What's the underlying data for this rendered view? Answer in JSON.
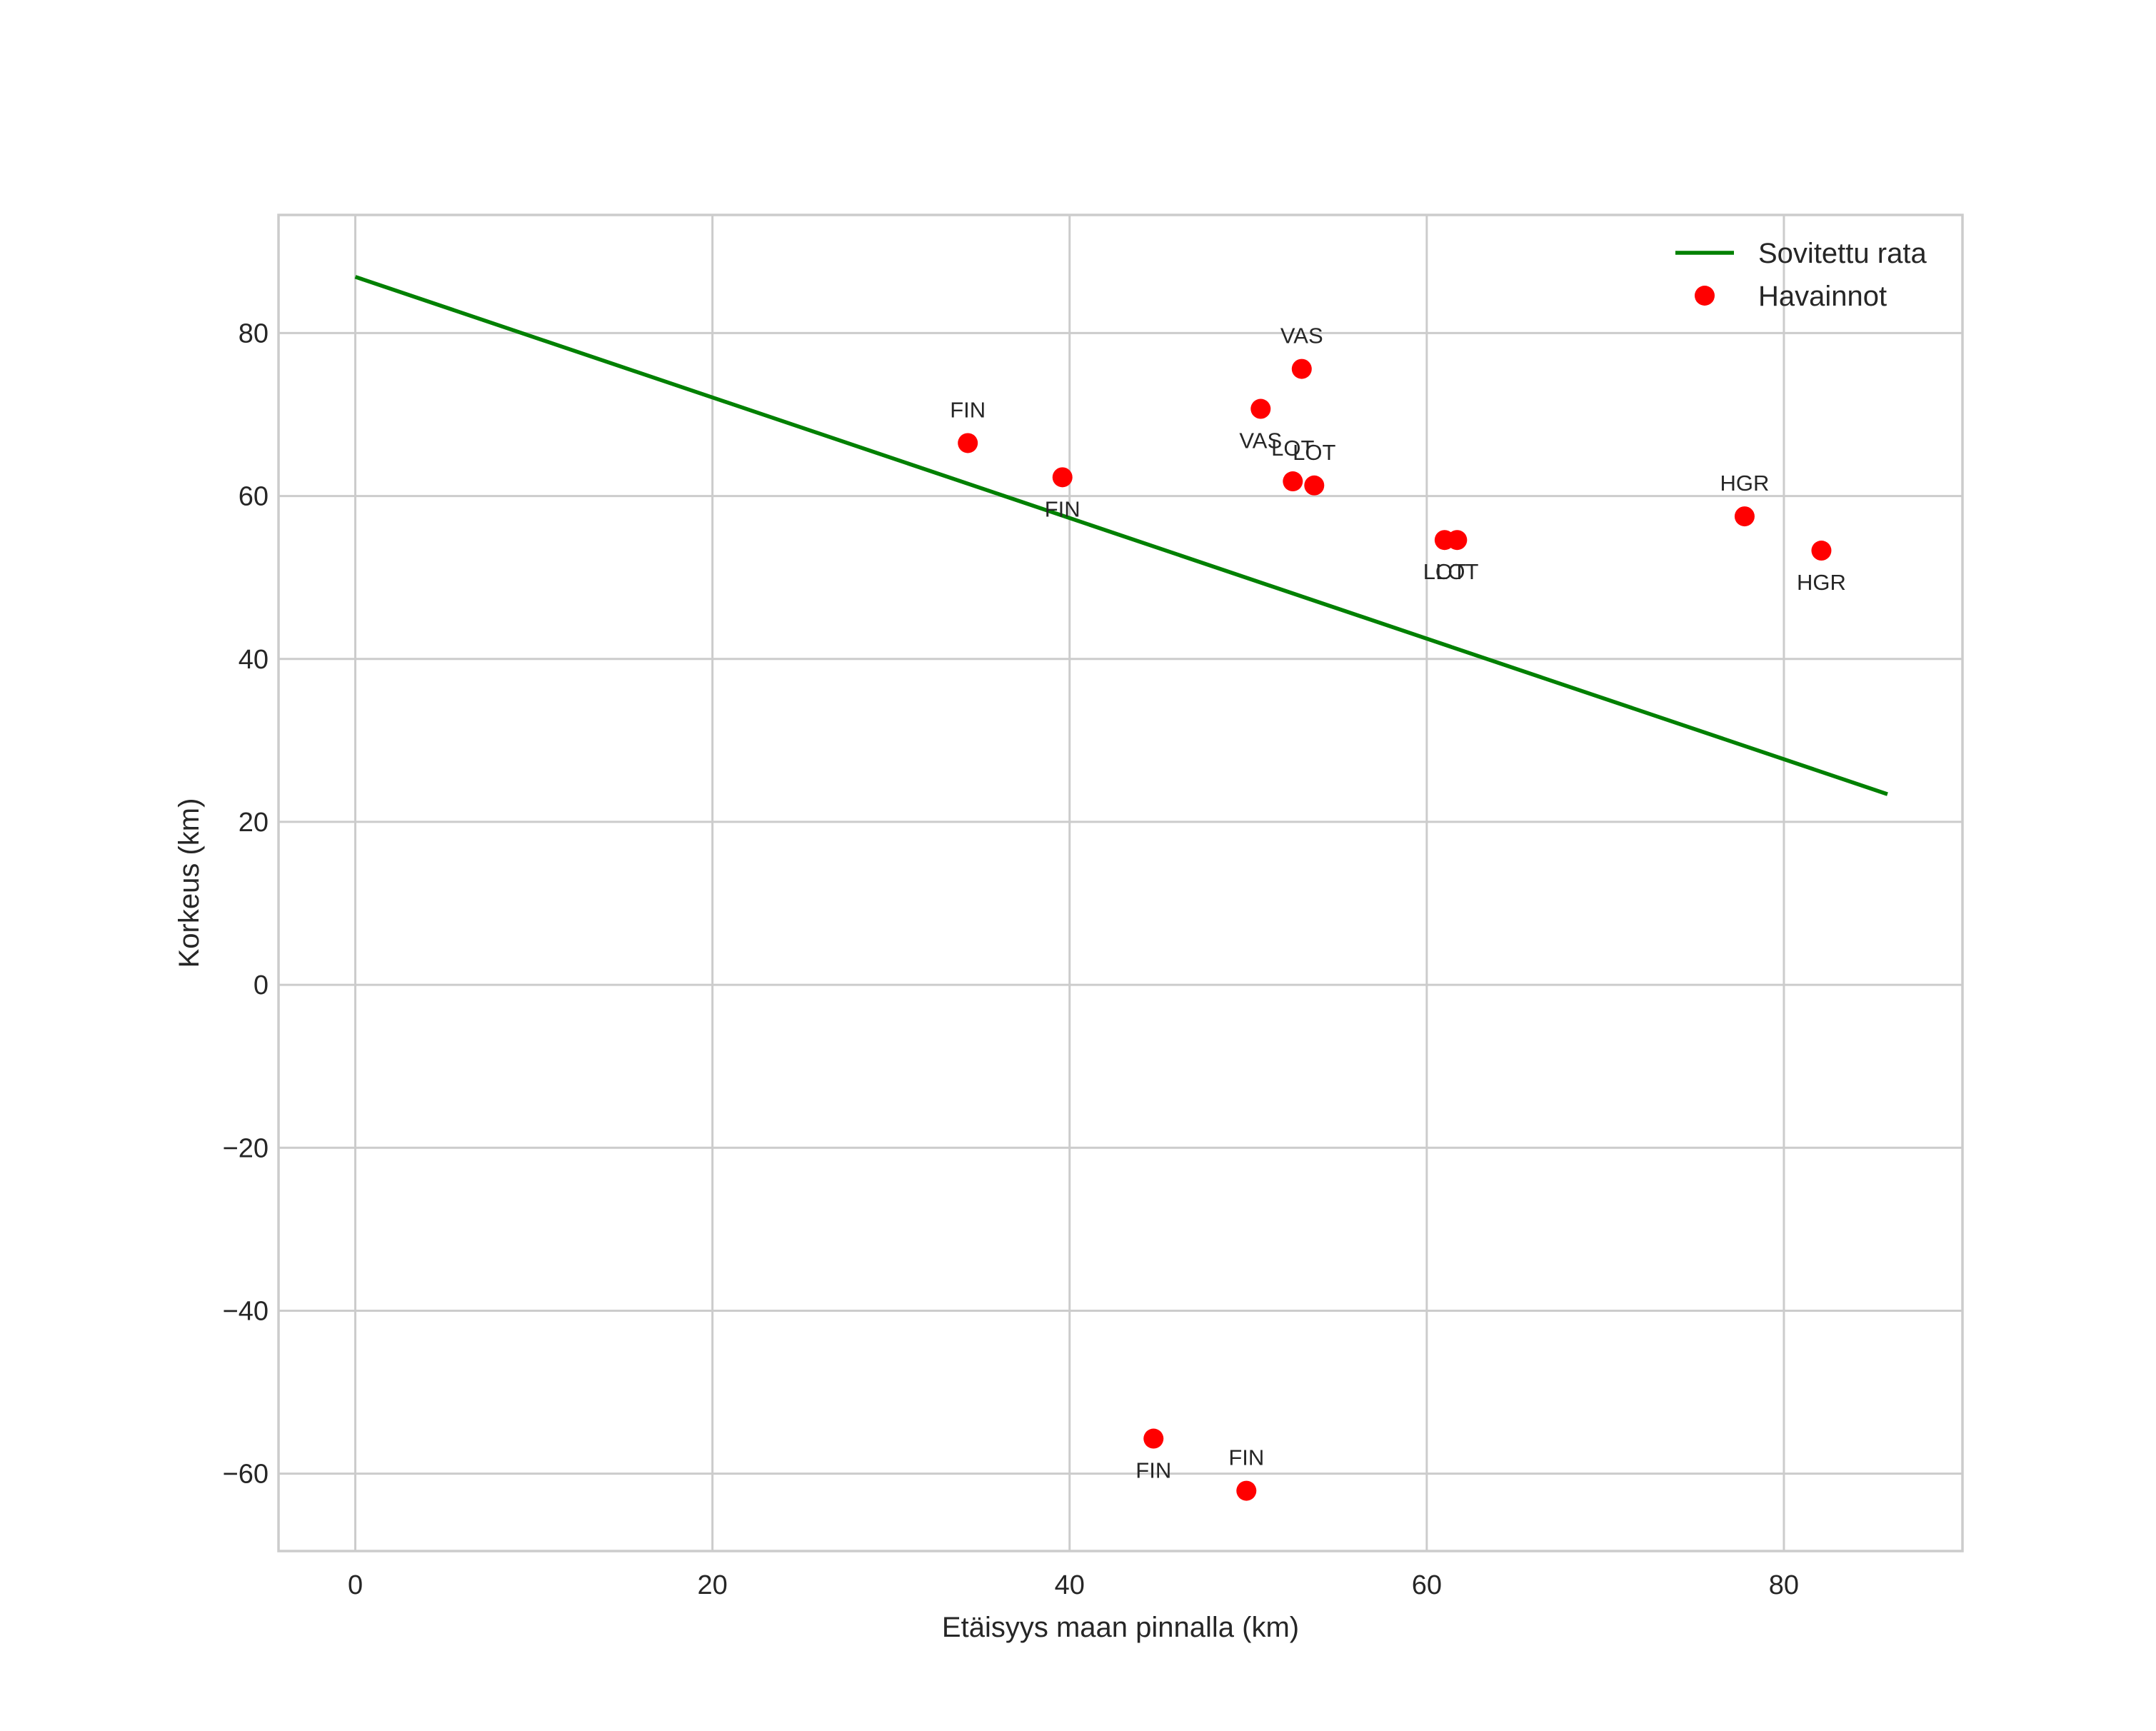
{
  "chart_data": {
    "type": "scatter",
    "title": "",
    "xlabel": "Etäisyys maan pinnalla (km)",
    "ylabel": "Korkeus (km)",
    "xlim": [
      -4.3,
      90
    ],
    "ylim": [
      -69.5,
      94.5
    ],
    "xticks": [
      0,
      20,
      40,
      60,
      80
    ],
    "yticks": [
      -60,
      -40,
      -20,
      0,
      20,
      40,
      60,
      80
    ],
    "xtick_labels": [
      "0",
      "20",
      "40",
      "60",
      "80"
    ],
    "ytick_labels": [
      "−60",
      "−40",
      "−20",
      "0",
      "20",
      "40",
      "60",
      "80"
    ],
    "grid": true,
    "legend_position": "top-right",
    "series": [
      {
        "name": "Sovitettu rata",
        "kind": "line",
        "color": "#008000",
        "x": [
          0,
          85.8
        ],
        "y": [
          86.9,
          23.4
        ]
      },
      {
        "name": "Havainnot",
        "kind": "scatter",
        "color": "#ff0000",
        "points": [
          {
            "x": 34.3,
            "y": 66.5,
            "label": "FIN",
            "label_pos": "above"
          },
          {
            "x": 39.6,
            "y": 62.3,
            "label": "FIN",
            "label_pos": "below"
          },
          {
            "x": 50.7,
            "y": 70.7,
            "label": "VAS",
            "label_pos": "below"
          },
          {
            "x": 53.0,
            "y": 75.6,
            "label": "VAS",
            "label_pos": "above"
          },
          {
            "x": 52.5,
            "y": 61.8,
            "label": "LOT",
            "label_pos": "above"
          },
          {
            "x": 53.7,
            "y": 61.3,
            "label": "LOT",
            "label_pos": "above"
          },
          {
            "x": 61.0,
            "y": 54.6,
            "label": "LOT",
            "label_pos": "below"
          },
          {
            "x": 61.7,
            "y": 54.6,
            "label": "LOT",
            "label_pos": "below"
          },
          {
            "x": 77.8,
            "y": 57.5,
            "label": "HGR",
            "label_pos": "above"
          },
          {
            "x": 82.1,
            "y": 53.3,
            "label": "HGR",
            "label_pos": "below"
          },
          {
            "x": 44.7,
            "y": -55.7,
            "label": "FIN",
            "label_pos": "below"
          },
          {
            "x": 49.9,
            "y": -62.1,
            "label": "FIN",
            "label_pos": "above"
          }
        ]
      }
    ]
  }
}
